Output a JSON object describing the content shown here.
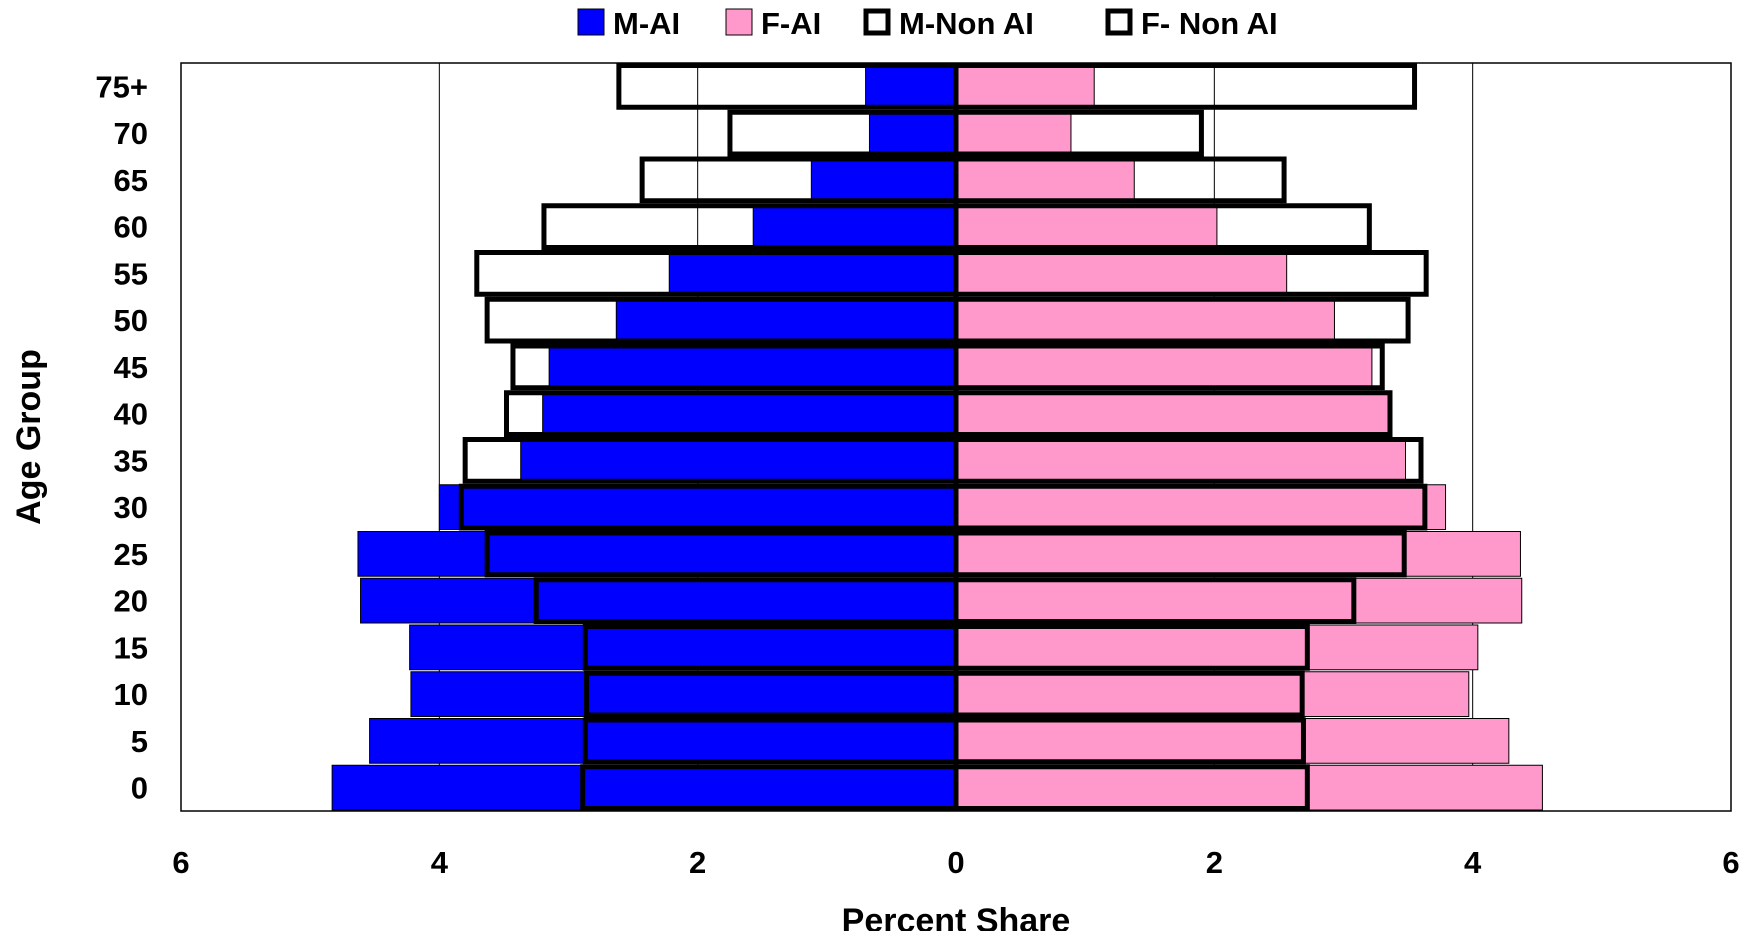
{
  "chart_data": {
    "type": "bar",
    "orientation": "horizontal",
    "layout": "population-pyramid",
    "categories": [
      "0",
      "5",
      "10",
      "15",
      "20",
      "25",
      "30",
      "35",
      "40",
      "45",
      "50",
      "55",
      "60",
      "65",
      "70",
      "75+"
    ],
    "series": [
      {
        "name": "M-AI",
        "side": "left",
        "style": "filled",
        "color": "#0000ff",
        "values": [
          4.83,
          4.54,
          4.22,
          4.23,
          4.61,
          4.63,
          4.0,
          3.37,
          3.2,
          3.15,
          2.63,
          2.22,
          1.57,
          1.12,
          0.67,
          0.7
        ]
      },
      {
        "name": "F-AI",
        "side": "right",
        "style": "filled",
        "color": "#ff99cc",
        "values": [
          4.54,
          4.28,
          3.97,
          4.04,
          4.38,
          4.37,
          3.79,
          3.48,
          3.36,
          3.22,
          2.93,
          2.56,
          2.02,
          1.38,
          0.89,
          1.07
        ]
      },
      {
        "name": "M-Non AI",
        "side": "left",
        "style": "outline",
        "color": "#000000",
        "values": [
          2.89,
          2.87,
          2.86,
          2.87,
          3.25,
          3.63,
          3.83,
          3.8,
          3.48,
          3.43,
          3.63,
          3.71,
          3.19,
          2.43,
          1.75,
          2.61
        ]
      },
      {
        "name": "F- Non AI",
        "side": "right",
        "style": "outline",
        "color": "#000000",
        "values": [
          2.72,
          2.69,
          2.68,
          2.72,
          3.08,
          3.47,
          3.63,
          3.6,
          3.36,
          3.3,
          3.5,
          3.64,
          3.2,
          2.54,
          1.9,
          3.55
        ]
      }
    ],
    "xlabel": "Percent Share",
    "ylabel": "Age Group",
    "xlim": [
      -6,
      6
    ],
    "xticks": [
      -6,
      -4,
      -2,
      0,
      2,
      4,
      6
    ],
    "xtick_labels": [
      "6",
      "4",
      "2",
      "0",
      "2",
      "4",
      "6"
    ],
    "grid": "vertical",
    "legend_position": "top"
  }
}
